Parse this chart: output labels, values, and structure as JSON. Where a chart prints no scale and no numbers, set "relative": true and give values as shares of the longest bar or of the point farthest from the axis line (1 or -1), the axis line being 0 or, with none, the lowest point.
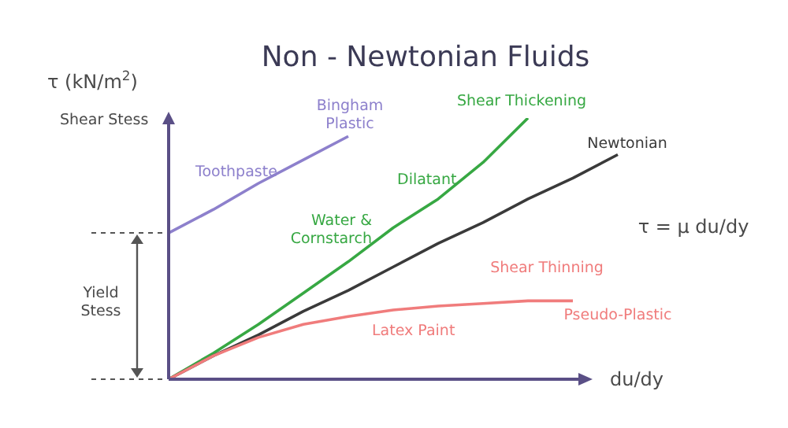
{
  "chart_data": {
    "type": "line",
    "title": "Non - Newtonian Fluids",
    "ylabel": "τ (kN/m$^{2}$)",
    "xlabel": "du/dy",
    "relative": true,
    "categories": [
      null,
      null,
      null,
      null,
      null,
      null,
      null,
      null,
      null,
      null,
      null
    ],
    "series": [
      {
        "name": "Bingham Plastic",
        "color": "#8d80cc",
        "values": [
          0.56,
          0.65,
          0.75,
          0.84,
          0.93,
          null,
          null,
          null,
          null,
          null,
          null
        ]
      },
      {
        "name": "Shear Thickening",
        "color": "#37a843",
        "values": [
          0,
          0.1,
          0.21,
          0.33,
          0.45,
          0.58,
          0.69,
          0.83,
          1,
          null,
          null
        ]
      },
      {
        "name": "Newtonian",
        "color": "#3a3a3a",
        "values": [
          0,
          0.09,
          0.17,
          0.26,
          0.34,
          0.43,
          0.52,
          0.6,
          0.69,
          0.77,
          0.86
        ]
      },
      {
        "name": "Shear Thinning",
        "color": "#f07c7c",
        "values": [
          0,
          0.09,
          0.16,
          0.21,
          0.24,
          0.265,
          0.28,
          0.29,
          0.3,
          0.3,
          null
        ]
      }
    ],
    "annotations": [
      "Shear Stess",
      "Toothpaste",
      "Water & Cornstarch",
      "Dilatant",
      "Latex Paint",
      "Pseudo-Plastic",
      "Yield Stess",
      "τ = μ du/dy"
    ],
    "marker": "none",
    "line_style": "solid"
  }
}
